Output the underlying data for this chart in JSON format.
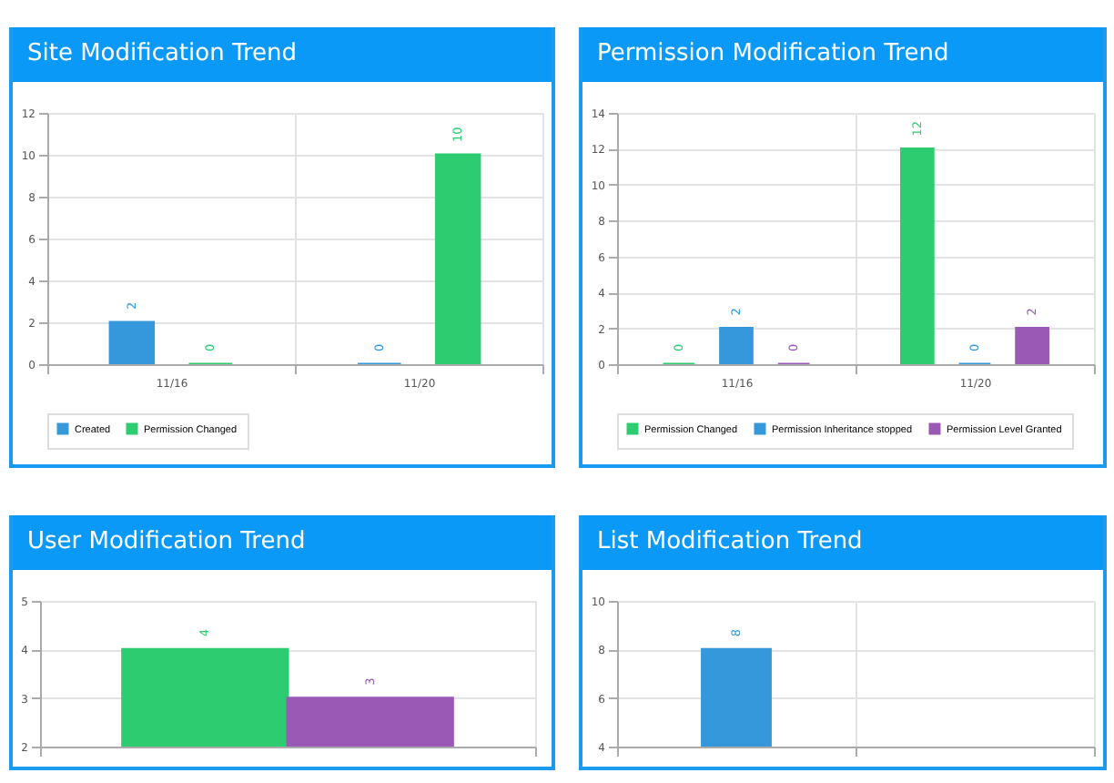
{
  "chart_data": [
    {
      "type": "bar",
      "title": "Site Modification Trend",
      "categories": [
        "11/16",
        "11/20"
      ],
      "series": [
        {
          "name": "Created",
          "color": "#3498db",
          "values": [
            2,
            0
          ]
        },
        {
          "name": "Permission Changed",
          "color": "#2ecc71",
          "values": [
            0,
            10
          ]
        }
      ],
      "ylim": [
        0,
        12
      ],
      "yticks": [
        0,
        2,
        4,
        6,
        8,
        10,
        12
      ],
      "grid": true,
      "legend": "bottom",
      "data_labels": true
    },
    {
      "type": "bar",
      "title": "Permission Modification Trend",
      "categories": [
        "11/16",
        "11/20"
      ],
      "series": [
        {
          "name": "Permission Changed",
          "color": "#2ecc71",
          "values": [
            0,
            12
          ]
        },
        {
          "name": "Permission Inheritance stopped",
          "color": "#3498db",
          "values": [
            2,
            0
          ]
        },
        {
          "name": "Permission Level Granted",
          "color": "#9b59b6",
          "values": [
            0,
            2
          ]
        }
      ],
      "ylim": [
        0,
        14
      ],
      "yticks": [
        0,
        2,
        4,
        6,
        8,
        10,
        12,
        14
      ],
      "grid": true,
      "legend": "bottom",
      "data_labels": true
    },
    {
      "type": "bar",
      "title": "User Modification Trend",
      "categories": [
        null
      ],
      "series": [
        {
          "color": "#2ecc71",
          "values": [
            4
          ]
        },
        {
          "color": "#9b59b6",
          "values": [
            3
          ]
        }
      ],
      "ylim": [
        2,
        5
      ],
      "yticks": [
        2,
        3,
        4,
        5
      ],
      "grid": true,
      "data_labels": true
    },
    {
      "type": "bar",
      "title": "List Modification Trend",
      "categories": [
        null,
        null
      ],
      "series": [
        {
          "color": "#3498db",
          "values": [
            8,
            null
          ]
        }
      ],
      "ylim": [
        4,
        10
      ],
      "yticks": [
        4,
        6,
        8,
        10
      ],
      "grid": true,
      "data_labels": true
    }
  ]
}
